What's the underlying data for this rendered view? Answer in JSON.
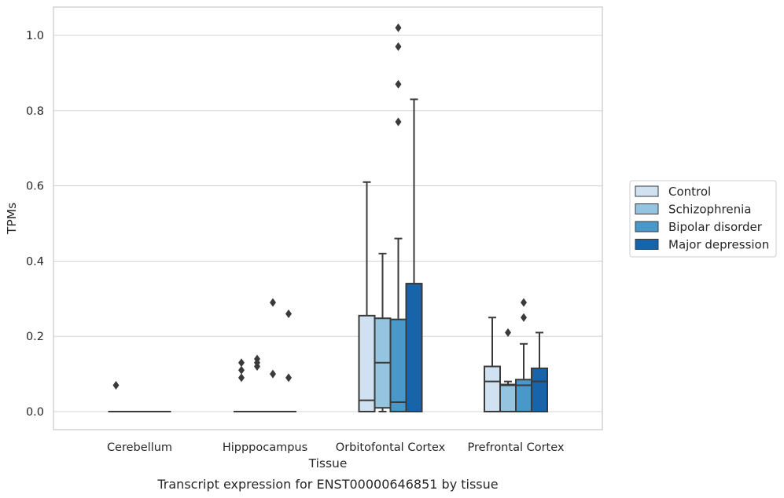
{
  "chart_data": {
    "type": "box",
    "title": "",
    "caption": "Transcript expression for ENST00000646851 by tissue",
    "xlabel": "Tissue",
    "ylabel": "TPMs",
    "ylim": [
      -0.05,
      1.075
    ],
    "yticks": [
      0.0,
      0.2,
      0.4,
      0.6,
      0.8,
      1.0
    ],
    "ytick_labels": [
      "0.0",
      "0.2",
      "0.4",
      "0.6",
      "0.8",
      "1.0"
    ],
    "grid": "horizontal",
    "legend_position": "right",
    "categories": [
      "Cerebellum",
      "Hipppocampus",
      "Orbitofontal Cortex",
      "Prefrontal Cortex"
    ],
    "series": [
      {
        "name": "Control",
        "color": "#d0e1f2",
        "boxes": [
          {
            "q1": 0.0,
            "median": 0.0,
            "q3": 0.0,
            "whisker_low": 0.0,
            "whisker_high": 0.0,
            "outliers": [
              0.07
            ]
          },
          {
            "q1": 0.0,
            "median": 0.0,
            "q3": 0.0,
            "whisker_low": 0.0,
            "whisker_high": 0.0,
            "outliers": [
              0.09,
              0.11,
              0.13
            ]
          },
          {
            "q1": 0.0,
            "median": 0.03,
            "q3": 0.255,
            "whisker_low": 0.0,
            "whisker_high": 0.61,
            "outliers": []
          },
          {
            "q1": 0.0,
            "median": 0.08,
            "q3": 0.12,
            "whisker_low": 0.0,
            "whisker_high": 0.25,
            "outliers": []
          }
        ]
      },
      {
        "name": "Schizophrenia",
        "color": "#94c4df",
        "boxes": [
          {
            "q1": 0.0,
            "median": 0.0,
            "q3": 0.0,
            "whisker_low": 0.0,
            "whisker_high": 0.0,
            "outliers": []
          },
          {
            "q1": 0.0,
            "median": 0.0,
            "q3": 0.0,
            "whisker_low": 0.0,
            "whisker_high": 0.0,
            "outliers": [
              0.12,
              0.13,
              0.14
            ]
          },
          {
            "q1": 0.01,
            "median": 0.13,
            "q3": 0.248,
            "whisker_low": 0.0,
            "whisker_high": 0.42,
            "outliers": []
          },
          {
            "q1": 0.0,
            "median": 0.07,
            "q3": 0.072,
            "whisker_low": 0.0,
            "whisker_high": 0.08,
            "outliers": [
              0.21
            ]
          }
        ]
      },
      {
        "name": "Bipolar disorder",
        "color": "#4a98c9",
        "boxes": [
          {
            "q1": 0.0,
            "median": 0.0,
            "q3": 0.0,
            "whisker_low": 0.0,
            "whisker_high": 0.0,
            "outliers": []
          },
          {
            "q1": 0.0,
            "median": 0.0,
            "q3": 0.0,
            "whisker_low": 0.0,
            "whisker_high": 0.0,
            "outliers": [
              0.1,
              0.29
            ]
          },
          {
            "q1": 0.0,
            "median": 0.025,
            "q3": 0.245,
            "whisker_low": 0.0,
            "whisker_high": 0.46,
            "outliers": [
              0.77,
              0.87,
              0.97,
              1.02
            ]
          },
          {
            "q1": 0.0,
            "median": 0.07,
            "q3": 0.085,
            "whisker_low": 0.0,
            "whisker_high": 0.18,
            "outliers": [
              0.25,
              0.29
            ]
          }
        ]
      },
      {
        "name": "Major depression",
        "color": "#1764ab",
        "boxes": [
          {
            "q1": 0.0,
            "median": 0.0,
            "q3": 0.0,
            "whisker_low": 0.0,
            "whisker_high": 0.0,
            "outliers": []
          },
          {
            "q1": 0.0,
            "median": 0.0,
            "q3": 0.0,
            "whisker_low": 0.0,
            "whisker_high": 0.0,
            "outliers": [
              0.09,
              0.26
            ]
          },
          {
            "q1": 0.0,
            "median": 0.34,
            "q3": 0.34,
            "whisker_low": 0.0,
            "whisker_high": 0.83,
            "outliers": []
          },
          {
            "q1": 0.0,
            "median": 0.08,
            "q3": 0.115,
            "whisker_low": 0.0,
            "whisker_high": 0.21,
            "outliers": []
          }
        ]
      }
    ]
  }
}
